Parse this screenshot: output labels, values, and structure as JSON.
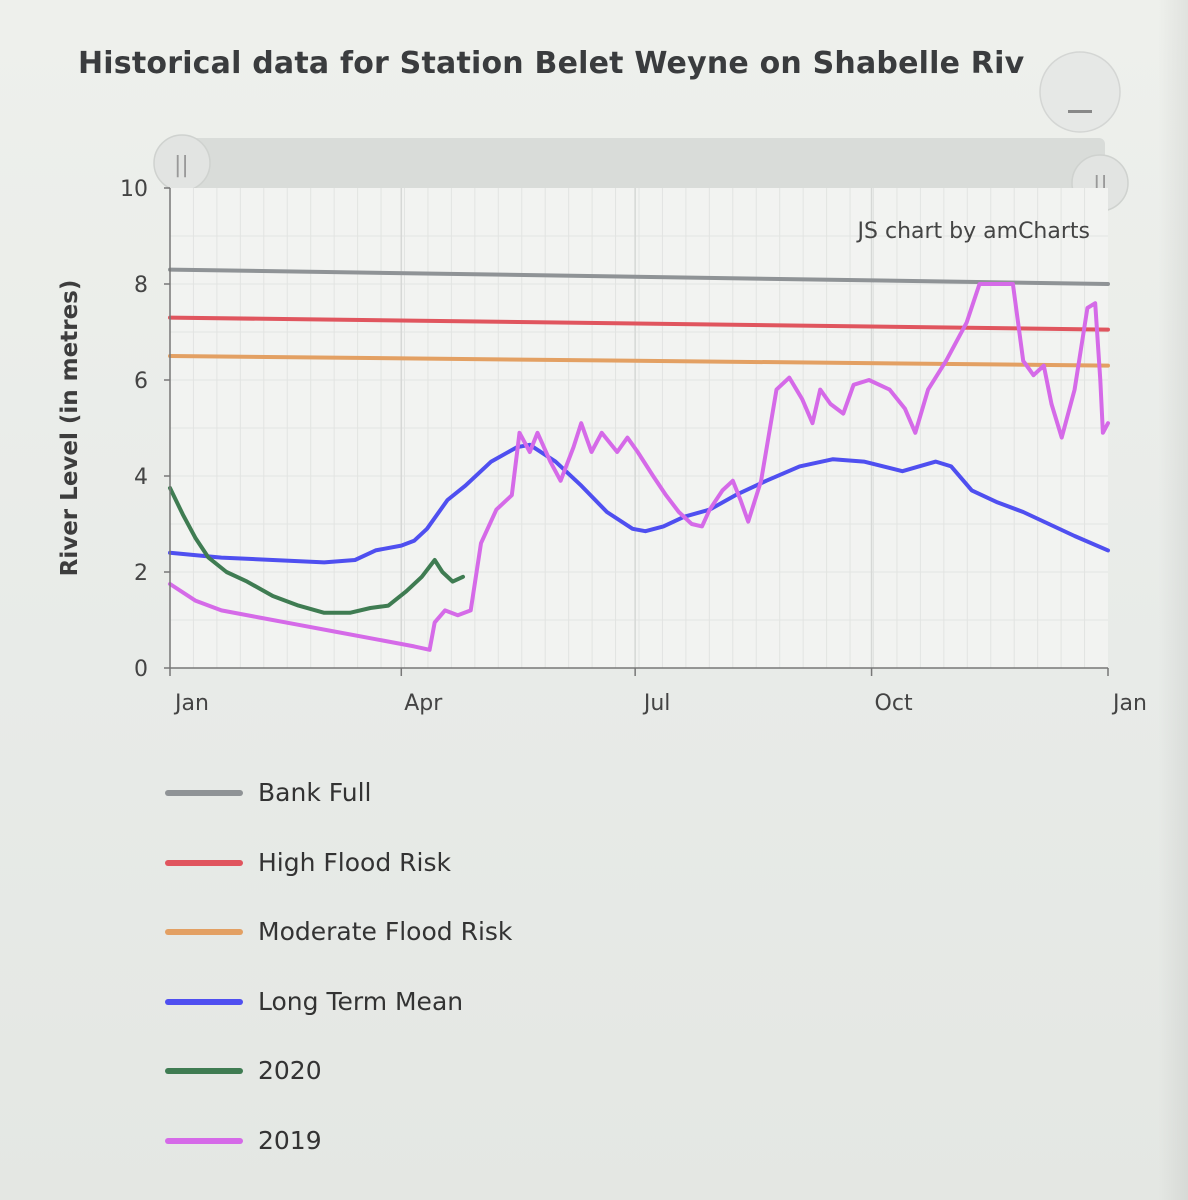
{
  "title": "Historical data for Station Belet Weyne on Shabelle Riv",
  "credit": "JS chart by amCharts",
  "chart_data": {
    "type": "line",
    "title": "Historical data for Station Belet Weyne on Shabelle Riv",
    "ylabel": "River Level (in metres)",
    "xlabel": "",
    "ylim": [
      0,
      10
    ],
    "yticks": [
      "0",
      "2",
      "4",
      "6",
      "8",
      "10"
    ],
    "xlim": [
      0,
      365
    ],
    "xticks": [
      {
        "label": "Jan",
        "x": 0
      },
      {
        "label": "Apr",
        "x": 90
      },
      {
        "label": "Jul",
        "x": 181
      },
      {
        "label": "Oct",
        "x": 273
      },
      {
        "label": "Jan",
        "x": 365
      }
    ],
    "grid": true,
    "legend_position": "bottom",
    "series": [
      {
        "name": "Bank Full",
        "color": "#8f9396",
        "points": [
          [
            0,
            8.3
          ],
          [
            365,
            8.0
          ]
        ]
      },
      {
        "name": "High Flood Risk",
        "color": "#e0555e",
        "points": [
          [
            0,
            7.3
          ],
          [
            365,
            7.05
          ]
        ]
      },
      {
        "name": "Moderate Flood Risk",
        "color": "#e3a063",
        "points": [
          [
            0,
            6.5
          ],
          [
            365,
            6.3
          ]
        ]
      },
      {
        "name": "Long Term Mean",
        "color": "#4f4ff0",
        "points": [
          [
            0,
            2.4
          ],
          [
            20,
            2.3
          ],
          [
            40,
            2.25
          ],
          [
            60,
            2.2
          ],
          [
            72,
            2.25
          ],
          [
            80,
            2.45
          ],
          [
            90,
            2.55
          ],
          [
            95,
            2.65
          ],
          [
            100,
            2.9
          ],
          [
            108,
            3.5
          ],
          [
            115,
            3.8
          ],
          [
            125,
            4.3
          ],
          [
            135,
            4.6
          ],
          [
            140,
            4.65
          ],
          [
            150,
            4.3
          ],
          [
            160,
            3.8
          ],
          [
            170,
            3.25
          ],
          [
            180,
            2.9
          ],
          [
            185,
            2.85
          ],
          [
            192,
            2.95
          ],
          [
            200,
            3.15
          ],
          [
            210,
            3.3
          ],
          [
            220,
            3.6
          ],
          [
            232,
            3.9
          ],
          [
            245,
            4.2
          ],
          [
            258,
            4.35
          ],
          [
            270,
            4.3
          ],
          [
            285,
            4.1
          ],
          [
            298,
            4.3
          ],
          [
            304,
            4.2
          ],
          [
            312,
            3.7
          ],
          [
            322,
            3.45
          ],
          [
            332,
            3.25
          ],
          [
            342,
            3.0
          ],
          [
            352,
            2.75
          ],
          [
            365,
            2.45
          ]
        ]
      },
      {
        "name": "2020",
        "color": "#3f7c52",
        "points": [
          [
            0,
            3.75
          ],
          [
            5,
            3.2
          ],
          [
            10,
            2.7
          ],
          [
            15,
            2.3
          ],
          [
            22,
            2.0
          ],
          [
            30,
            1.8
          ],
          [
            40,
            1.5
          ],
          [
            50,
            1.3
          ],
          [
            60,
            1.15
          ],
          [
            70,
            1.15
          ],
          [
            78,
            1.25
          ],
          [
            85,
            1.3
          ],
          [
            92,
            1.6
          ],
          [
            98,
            1.9
          ],
          [
            103,
            2.25
          ],
          [
            106,
            2.0
          ],
          [
            110,
            1.8
          ],
          [
            114,
            1.9
          ]
        ]
      },
      {
        "name": "2019",
        "color": "#d56ae8",
        "points": [
          [
            0,
            1.75
          ],
          [
            10,
            1.4
          ],
          [
            20,
            1.2
          ],
          [
            35,
            1.05
          ],
          [
            50,
            0.9
          ],
          [
            65,
            0.75
          ],
          [
            80,
            0.6
          ],
          [
            95,
            0.45
          ],
          [
            101,
            0.38
          ],
          [
            103,
            0.95
          ],
          [
            107,
            1.2
          ],
          [
            112,
            1.1
          ],
          [
            117,
            1.2
          ],
          [
            121,
            2.6
          ],
          [
            127,
            3.3
          ],
          [
            133,
            3.6
          ],
          [
            136,
            4.9
          ],
          [
            140,
            4.5
          ],
          [
            143,
            4.9
          ],
          [
            148,
            4.3
          ],
          [
            152,
            3.9
          ],
          [
            157,
            4.6
          ],
          [
            160,
            5.1
          ],
          [
            164,
            4.5
          ],
          [
            168,
            4.9
          ],
          [
            174,
            4.5
          ],
          [
            178,
            4.8
          ],
          [
            182,
            4.5
          ],
          [
            188,
            4.0
          ],
          [
            193,
            3.6
          ],
          [
            198,
            3.25
          ],
          [
            203,
            3.0
          ],
          [
            207,
            2.95
          ],
          [
            210,
            3.3
          ],
          [
            215,
            3.7
          ],
          [
            219,
            3.9
          ],
          [
            222,
            3.5
          ],
          [
            225,
            3.05
          ],
          [
            230,
            3.9
          ],
          [
            236,
            5.8
          ],
          [
            241,
            6.05
          ],
          [
            246,
            5.6
          ],
          [
            250,
            5.1
          ],
          [
            253,
            5.8
          ],
          [
            257,
            5.5
          ],
          [
            262,
            5.3
          ],
          [
            266,
            5.9
          ],
          [
            272,
            6.0
          ],
          [
            280,
            5.8
          ],
          [
            286,
            5.4
          ],
          [
            290,
            4.9
          ],
          [
            295,
            5.8
          ],
          [
            302,
            6.4
          ],
          [
            310,
            7.2
          ],
          [
            315,
            8.0
          ],
          [
            328,
            8.0
          ],
          [
            332,
            6.4
          ],
          [
            336,
            6.1
          ],
          [
            340,
            6.3
          ],
          [
            343,
            5.5
          ],
          [
            347,
            4.8
          ],
          [
            352,
            5.8
          ],
          [
            357,
            7.5
          ],
          [
            360,
            7.6
          ],
          [
            362,
            6.0
          ],
          [
            363,
            4.9
          ],
          [
            365,
            5.1
          ]
        ]
      }
    ]
  }
}
